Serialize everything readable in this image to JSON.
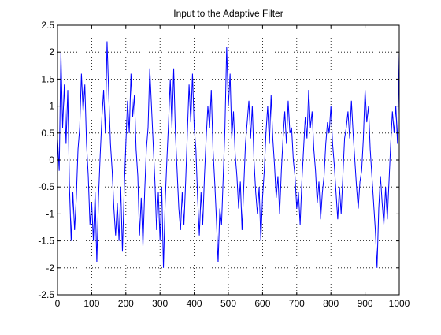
{
  "chart_data": {
    "type": "line",
    "title": "Input to the Adaptive Filter",
    "xlabel": "",
    "ylabel": "",
    "xlim": [
      0,
      1000
    ],
    "ylim": [
      -2.5,
      2.5
    ],
    "xticks": [
      0,
      100,
      200,
      300,
      400,
      500,
      600,
      700,
      800,
      900,
      1000
    ],
    "yticks": [
      -2.5,
      -2,
      -1.5,
      -1,
      -0.5,
      0,
      0.5,
      1,
      1.5,
      2,
      2.5
    ],
    "xtick_labels": [
      "0",
      "100",
      "200",
      "300",
      "400",
      "500",
      "600",
      "700",
      "800",
      "900",
      "1000"
    ],
    "ytick_labels": [
      "-2.5",
      "-2",
      "-1.5",
      "-1",
      "-0.5",
      "0",
      "0.5",
      "1",
      "1.5",
      "2",
      "2.5"
    ],
    "grid": true,
    "line_color": "#0000ff",
    "series": [
      {
        "x": [
          0,
          5,
          10,
          15,
          20,
          25,
          30,
          35,
          40,
          45,
          50,
          55,
          60,
          65,
          70,
          75,
          80,
          85,
          90,
          95,
          100,
          105,
          110,
          115,
          120,
          125,
          130,
          135,
          140,
          145,
          150,
          155,
          160,
          165,
          170,
          175,
          180,
          185,
          190,
          195,
          200,
          205,
          210,
          215,
          220,
          225,
          230,
          235,
          240,
          245,
          250,
          255,
          260,
          265,
          270,
          275,
          280,
          285,
          290,
          295,
          300,
          305,
          310,
          315,
          320,
          325,
          330,
          335,
          340,
          345,
          350,
          355,
          360,
          365,
          370,
          375,
          380,
          385,
          390,
          395,
          400,
          405,
          410,
          415,
          420,
          425,
          430,
          435,
          440,
          445,
          450,
          455,
          460,
          465,
          470,
          475,
          480,
          485,
          490,
          495,
          500,
          505,
          510,
          515,
          520,
          525,
          530,
          535,
          540,
          545,
          550,
          555,
          560,
          565,
          570,
          575,
          580,
          585,
          590,
          595,
          600,
          605,
          610,
          615,
          620,
          625,
          630,
          635,
          640,
          645,
          650,
          655,
          660,
          665,
          670,
          675,
          680,
          685,
          690,
          695,
          700,
          705,
          710,
          715,
          720,
          725,
          730,
          735,
          740,
          745,
          750,
          755,
          760,
          765,
          770,
          775,
          780,
          785,
          790,
          795,
          800,
          805,
          810,
          815,
          820,
          825,
          830,
          835,
          840,
          845,
          850,
          855,
          860,
          865,
          870,
          875,
          880,
          885,
          890,
          895,
          900,
          905,
          910,
          915,
          920,
          925,
          930,
          935,
          940,
          945,
          950,
          955,
          960,
          965,
          970,
          975,
          980,
          985,
          990,
          995,
          1000
        ],
        "y": [
          0.4,
          -0.2,
          2.0,
          0.6,
          1.4,
          0.3,
          1.3,
          -0.5,
          -1.5,
          -0.6,
          -1.3,
          -0.7,
          0.2,
          0.6,
          1.6,
          0.9,
          1.4,
          0.3,
          -0.3,
          -1.2,
          -0.8,
          -1.5,
          -0.6,
          -1.9,
          -0.7,
          0.1,
          0.8,
          1.3,
          0.5,
          2.2,
          1.2,
          0.3,
          -0.2,
          -0.9,
          -1.4,
          -0.8,
          -1.5,
          -0.5,
          -1.7,
          -0.6,
          0.3,
          1.1,
          0.5,
          1.6,
          0.8,
          1.2,
          0.2,
          -0.3,
          -1.4,
          -0.7,
          -1.6,
          -0.6,
          0.2,
          0.6,
          1.7,
          1.0,
          0.3,
          -0.4,
          -1.3,
          -0.6,
          -1.5,
          -0.5,
          -2.0,
          -0.8,
          0.0,
          0.7,
          1.5,
          0.6,
          1.7,
          0.5,
          -0.2,
          -0.9,
          -1.3,
          -0.6,
          -1.2,
          -0.4,
          0.5,
          1.4,
          0.7,
          1.6,
          0.6,
          0.2,
          -0.7,
          -1.4,
          -0.6,
          -1.2,
          -0.3,
          0.4,
          1.0,
          0.6,
          1.3,
          0.2,
          -0.4,
          -1.1,
          -1.9,
          -0.9,
          -1.2,
          -0.3,
          0.6,
          2.1,
          1.0,
          1.6,
          0.4,
          0.9,
          0.1,
          -0.3,
          -0.9,
          -0.4,
          -1.3,
          -0.5,
          0.3,
          0.7,
          1.1,
          0.4,
          1.0,
          0.0,
          -0.6,
          -1.0,
          -0.5,
          -1.5,
          -0.7,
          -0.2,
          0.5,
          1.0,
          0.3,
          1.2,
          0.4,
          -0.1,
          -0.7,
          -0.3,
          -1.0,
          -0.2,
          0.4,
          0.9,
          0.3,
          1.1,
          0.5,
          0.6,
          0.0,
          -0.3,
          -0.9,
          -0.6,
          -1.2,
          -0.4,
          0.2,
          0.8,
          0.4,
          1.3,
          0.6,
          0.9,
          0.2,
          -0.2,
          -0.8,
          -0.4,
          -1.1,
          -0.6,
          -0.3,
          0.3,
          0.7,
          0.5,
          1.0,
          0.3,
          -0.1,
          -0.6,
          -1.1,
          -0.5,
          -1.0,
          -0.3,
          0.4,
          0.6,
          0.9,
          0.4,
          1.1,
          0.5,
          0.0,
          -0.5,
          -0.9,
          -0.4,
          -0.2,
          0.4,
          1.3,
          0.7,
          1.0,
          0.2,
          -0.3,
          -0.8,
          -1.3,
          -2.0,
          -0.9,
          -0.3,
          -0.8,
          -1.2,
          -0.5,
          -1.1,
          -0.4,
          0.3,
          0.9,
          0.5,
          1.0,
          0.3,
          2.0
        ]
      }
    ]
  }
}
